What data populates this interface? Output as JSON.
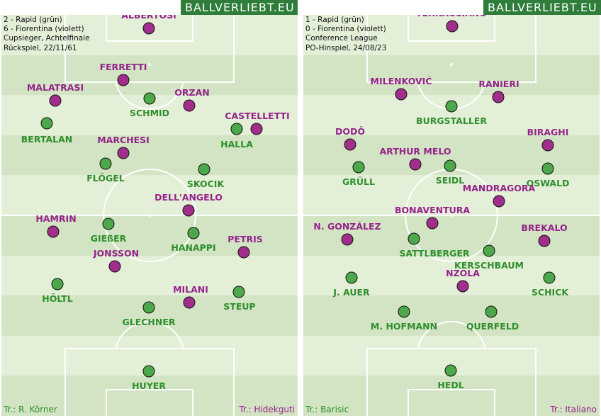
{
  "colors": {
    "green_team": "#4ca84a",
    "violet_team": "#a12e8a",
    "green_text": "#2e8f2c",
    "violet_text": "#95238a",
    "pitch_light": "#e4efd8",
    "pitch_dark": "#d2e4c3",
    "brand_bg": "#2e7d3a"
  },
  "left": {
    "brand": "BALLVERLIEBT.EU",
    "info": [
      "2 - Rapid (grün)",
      "6 - Fiorentina (violett)",
      "Cupsieger, Achtelfinale",
      "Rückspiel, 22/11/61"
    ],
    "coach_green": "Tr.: R. Körner",
    "coach_violet": "Tr.: Hidekguti",
    "players": [
      {
        "team": "v",
        "name": "ALBERTOSI"
      },
      {
        "team": "v",
        "name": "FERRETTI"
      },
      {
        "team": "v",
        "name": "MALATRASI"
      },
      {
        "team": "g",
        "name": "SCHMID"
      },
      {
        "team": "v",
        "name": "ORZAN"
      },
      {
        "team": "g",
        "name": "BERTALAN"
      },
      {
        "team": "v",
        "name": "CASTELLETTI"
      },
      {
        "team": "g",
        "name": "HALLA"
      },
      {
        "team": "v",
        "name": "MARCHESI"
      },
      {
        "team": "g",
        "name": "FLÖGEL"
      },
      {
        "team": "g",
        "name": "SKOCIK"
      },
      {
        "team": "v",
        "name": "DELL'ANGELO"
      },
      {
        "team": "v",
        "name": "HAMRIN"
      },
      {
        "team": "g",
        "name": "GIEßER"
      },
      {
        "team": "g",
        "name": "HANAPPI"
      },
      {
        "team": "v",
        "name": "PETRIS"
      },
      {
        "team": "v",
        "name": "JONSSON"
      },
      {
        "team": "g",
        "name": "HÖLTL"
      },
      {
        "team": "v",
        "name": "MILANI"
      },
      {
        "team": "g",
        "name": "STEUP"
      },
      {
        "team": "g",
        "name": "GLECHNER"
      },
      {
        "team": "g",
        "name": "HUYER"
      }
    ]
  },
  "right": {
    "brand": "BALLVERLIEBT.EU",
    "info": [
      "1 - Rapid (grün)",
      "0 - Fiorentina (violett)",
      "Conference League",
      "PO-Hinspiel, 24/08/23"
    ],
    "coach_green": "Tr.: Barisic",
    "coach_violet": "Tr.: Italiano",
    "players": [
      {
        "team": "v",
        "name": "TERRACCIANO"
      },
      {
        "team": "v",
        "name": "MILENKOVIĆ"
      },
      {
        "team": "v",
        "name": "RANIERI"
      },
      {
        "team": "g",
        "name": "BURGSTALLER"
      },
      {
        "team": "v",
        "name": "DODÔ"
      },
      {
        "team": "v",
        "name": "BIRAGHI"
      },
      {
        "team": "v",
        "name": "ARTHUR MELO"
      },
      {
        "team": "g",
        "name": "GRÜLL"
      },
      {
        "team": "g",
        "name": "SEIDL"
      },
      {
        "team": "g",
        "name": "OSWALD"
      },
      {
        "team": "v",
        "name": "MANDRAGORA"
      },
      {
        "team": "v",
        "name": "BONAVENTURA"
      },
      {
        "team": "v",
        "name": "N. GONZÁLEZ"
      },
      {
        "team": "g",
        "name": "SATTLBERGER"
      },
      {
        "team": "v",
        "name": "BREKALO"
      },
      {
        "team": "g",
        "name": "KERSCHBAUM"
      },
      {
        "team": "g",
        "name": "J. AUER"
      },
      {
        "team": "g",
        "name": "SCHICK"
      },
      {
        "team": "v",
        "name": "NZOLA"
      },
      {
        "team": "g",
        "name": "M. HOFMANN"
      },
      {
        "team": "g",
        "name": "QUERFELD"
      },
      {
        "team": "g",
        "name": "HEDL"
      }
    ]
  }
}
